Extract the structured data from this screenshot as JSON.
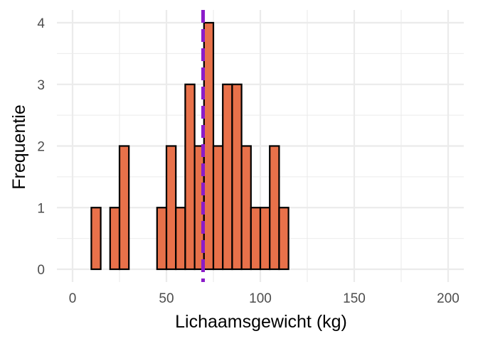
{
  "chart_data": {
    "type": "bar",
    "subtype": "histogram",
    "xlabel": "Lichaamsgewicht (kg)",
    "ylabel": "Frequentie",
    "xlim": [
      0,
      200
    ],
    "ylim": [
      0,
      4
    ],
    "x_ticks": [
      0,
      50,
      100,
      150,
      200
    ],
    "y_ticks": [
      0,
      1,
      2,
      3,
      4
    ],
    "x_tick_labels": [
      "0",
      "50",
      "100",
      "150",
      "200"
    ],
    "y_tick_labels": [
      "0",
      "1",
      "2",
      "3",
      "4"
    ],
    "bin_width": 5,
    "bins": [
      {
        "start": 0,
        "end": 5,
        "count": 0
      },
      {
        "start": 5,
        "end": 10,
        "count": 0
      },
      {
        "start": 10,
        "end": 15,
        "count": 1
      },
      {
        "start": 15,
        "end": 20,
        "count": 0
      },
      {
        "start": 20,
        "end": 25,
        "count": 1
      },
      {
        "start": 25,
        "end": 30,
        "count": 2
      },
      {
        "start": 30,
        "end": 35,
        "count": 0
      },
      {
        "start": 35,
        "end": 40,
        "count": 0
      },
      {
        "start": 40,
        "end": 45,
        "count": 0
      },
      {
        "start": 45,
        "end": 50,
        "count": 1
      },
      {
        "start": 50,
        "end": 55,
        "count": 2
      },
      {
        "start": 55,
        "end": 60,
        "count": 1
      },
      {
        "start": 60,
        "end": 65,
        "count": 3
      },
      {
        "start": 65,
        "end": 70,
        "count": 2
      },
      {
        "start": 70,
        "end": 75,
        "count": 4
      },
      {
        "start": 75,
        "end": 80,
        "count": 2
      },
      {
        "start": 80,
        "end": 85,
        "count": 3
      },
      {
        "start": 85,
        "end": 90,
        "count": 3
      },
      {
        "start": 90,
        "end": 95,
        "count": 2
      },
      {
        "start": 95,
        "end": 100,
        "count": 1
      },
      {
        "start": 100,
        "end": 105,
        "count": 1
      },
      {
        "start": 105,
        "end": 110,
        "count": 2
      },
      {
        "start": 110,
        "end": 115,
        "count": 1
      },
      {
        "start": 115,
        "end": 120,
        "count": 0
      },
      {
        "start": 120,
        "end": 125,
        "count": 0
      },
      {
        "start": 125,
        "end": 130,
        "count": 0
      },
      {
        "start": 130,
        "end": 135,
        "count": 0
      },
      {
        "start": 135,
        "end": 140,
        "count": 0
      },
      {
        "start": 140,
        "end": 145,
        "count": 0
      },
      {
        "start": 145,
        "end": 150,
        "count": 0
      },
      {
        "start": 150,
        "end": 155,
        "count": 0
      },
      {
        "start": 155,
        "end": 160,
        "count": 0
      },
      {
        "start": 160,
        "end": 165,
        "count": 0
      },
      {
        "start": 165,
        "end": 170,
        "count": 0
      },
      {
        "start": 170,
        "end": 175,
        "count": 0
      },
      {
        "start": 175,
        "end": 180,
        "count": 0
      },
      {
        "start": 180,
        "end": 185,
        "count": 0
      },
      {
        "start": 185,
        "end": 190,
        "count": 0
      },
      {
        "start": 190,
        "end": 195,
        "count": 0
      },
      {
        "start": 195,
        "end": 200,
        "count": 0
      }
    ],
    "mean_line": {
      "x": 69.5,
      "style": "dashed",
      "color": "#8b1cc9"
    },
    "bar_fill": "#e8714a",
    "bar_outline": "#000000",
    "grid": true,
    "grid_color": "#ebebeb",
    "legend": "none"
  }
}
